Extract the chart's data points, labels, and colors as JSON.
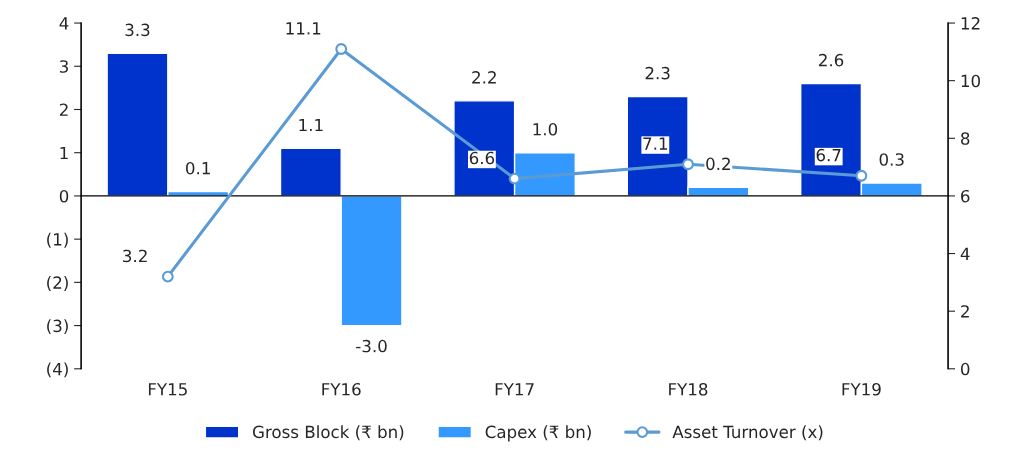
{
  "chart_data": {
    "type": "bar",
    "categories": [
      "FY15",
      "FY16",
      "FY17",
      "FY18",
      "FY19"
    ],
    "series": [
      {
        "name": "Gross Block (₹ bn)",
        "color": "#0033cc",
        "values": [
          3.3,
          1.1,
          2.2,
          2.3,
          2.6
        ],
        "value_labels": [
          "3.3",
          "1.1",
          "2.2",
          "2.3",
          "2.6"
        ]
      },
      {
        "name": "Capex (₹ bn)",
        "color": "#3399ff",
        "values": [
          0.1,
          -3.0,
          1.0,
          0.2,
          0.3
        ],
        "value_labels": [
          "0.1",
          "-3.0",
          "1.0",
          "0.2",
          "0.3"
        ]
      },
      {
        "name": "Asset Turnover (x)",
        "type": "line",
        "axis": "y2",
        "color": "#5b9bd5",
        "marker": "circle",
        "values": [
          3.2,
          11.1,
          6.6,
          7.1,
          6.7
        ],
        "value_labels": [
          "3.2",
          "11.1",
          "6.6",
          "7.1",
          "6.7"
        ]
      }
    ],
    "ylim": [
      -4,
      4
    ],
    "yticks": [
      {
        "value": -4,
        "label": "(4)"
      },
      {
        "value": -3,
        "label": "(3)"
      },
      {
        "value": -2,
        "label": "(2)"
      },
      {
        "value": -1,
        "label": "(1)"
      },
      0,
      1,
      2,
      3,
      4
    ],
    "y2lim": [
      0,
      12
    ],
    "y2ticks": [
      0,
      2,
      4,
      6,
      8,
      10,
      12
    ],
    "legend": "bottom"
  }
}
